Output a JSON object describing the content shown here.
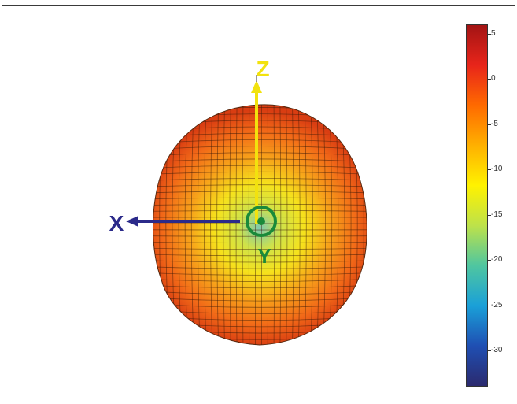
{
  "axes": {
    "x_label": "X",
    "y_label": "Y",
    "z_label": "Z",
    "x_color": "#2b2a8a",
    "y_color": "#1a8a3a",
    "z_color": "#f2e20e"
  },
  "colorbar": {
    "tick_labels": [
      "5",
      "0",
      "-5",
      "-10",
      "-15",
      "-20",
      "-25",
      "-30"
    ],
    "tick_values": [
      5,
      0,
      -5,
      -10,
      -15,
      -20,
      -25,
      -30
    ],
    "range": [
      -34,
      6
    ],
    "colormap": [
      "#2b2a6e",
      "#1f4fb3",
      "#1aa0d8",
      "#4fc6a0",
      "#bde24a",
      "#fff200",
      "#ffb000",
      "#ff6a00",
      "#e8251a",
      "#a31414"
    ]
  },
  "pattern": {
    "colors": {
      "rim": "#d93d12",
      "outer": "#f26a18",
      "mid": "#f7a21a",
      "inner": "#f6e21c",
      "center": "#7ec9b0"
    }
  }
}
